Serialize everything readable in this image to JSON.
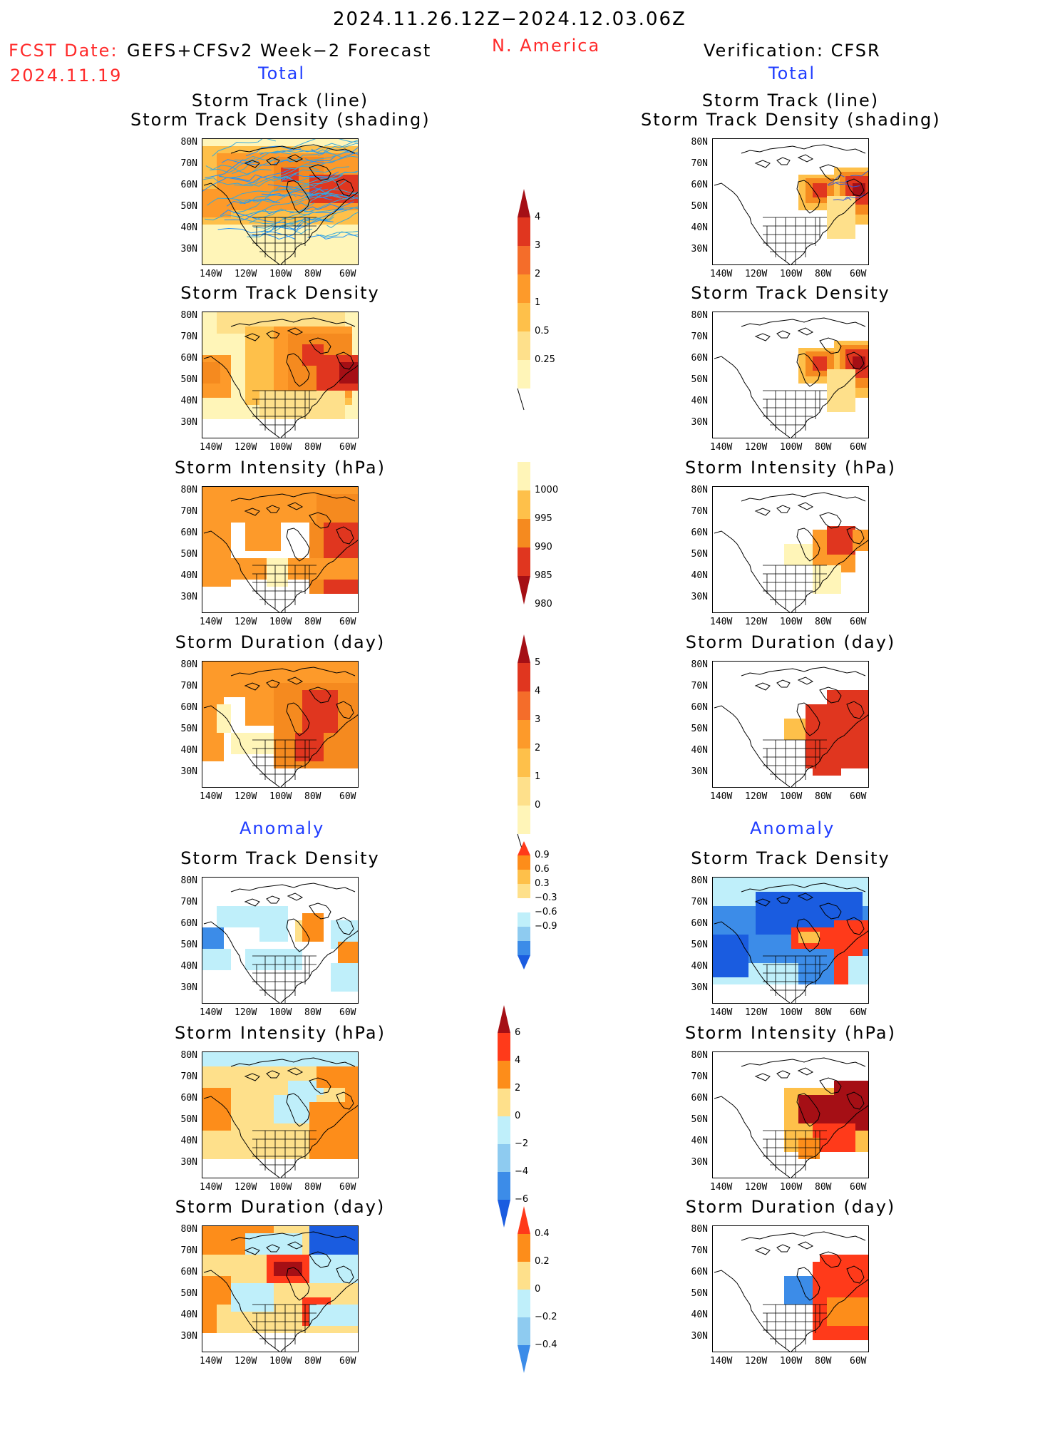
{
  "header": {
    "date_range": "2024.11.26.12Z−2024.12.03.06Z",
    "fcst_label": "FCST Date:",
    "fcst_model": "GEFS+CFSv2 Week−2 Forecast",
    "fcst_date": "2024.11.19",
    "region": "N. America",
    "verification": "Verification: CFSR"
  },
  "sections": {
    "total": "Total",
    "anomaly": "Anomaly"
  },
  "panel_titles": {
    "track_line": "Storm Track (line)",
    "track_density_shading": "Storm Track Density (shading)",
    "track_density": "Storm Track Density",
    "intensity": "Storm Intensity (hPa)",
    "duration": "Storm Duration (day)"
  },
  "lat_labels": [
    "80N",
    "70N",
    "60N",
    "50N",
    "40N",
    "30N"
  ],
  "lon_labels": [
    "140W",
    "120W",
    "100W",
    "80W",
    "60W"
  ],
  "colorbars": {
    "density_total": {
      "labels": [
        "4",
        "3",
        "2",
        "1",
        "0.5",
        "0.25"
      ],
      "colors": [
        "#a50f15",
        "#e0361f",
        "#f46d2a",
        "#fd9a2a",
        "#fec04a",
        "#fee08b",
        "#fff5b8"
      ]
    },
    "intensity_total": {
      "labels": [
        "1000",
        "995",
        "990",
        "985",
        "980"
      ],
      "colors": [
        "#fff5b8",
        "#fec04a",
        "#f58a1f",
        "#e0361f",
        "#a50f15"
      ]
    },
    "duration_total": {
      "labels": [
        "5",
        "4",
        "3",
        "2",
        "1",
        "0"
      ],
      "colors": [
        "#a50f15",
        "#e0361f",
        "#f46d2a",
        "#fd9a2a",
        "#fec04a",
        "#fee08b",
        "#fff5b8"
      ]
    },
    "density_anom": {
      "labels": [
        "0.9",
        "0.6",
        "0.3",
        "−0.3",
        "−0.6",
        "−0.9"
      ],
      "colors": [
        "#ff3a1a",
        "#fd8d1a",
        "#fec04a",
        "#fee08b",
        "#ffffff",
        "#bfeffa",
        "#8ecbf0",
        "#3c8ce8",
        "#1a5ce0"
      ]
    },
    "intensity_anom": {
      "labels": [
        "6",
        "4",
        "2",
        "0",
        "−2",
        "−4",
        "−6"
      ],
      "colors": [
        "#a50f15",
        "#ff3a1a",
        "#fd8d1a",
        "#fee08b",
        "#bfeffa",
        "#8ecbf0",
        "#3c8ce8",
        "#1a5ce0"
      ]
    },
    "duration_anom": {
      "labels": [
        "0.4",
        "0.2",
        "0",
        "−0.2",
        "−0.4"
      ],
      "colors": [
        "#ff3a1a",
        "#fd8d1a",
        "#fee08b",
        "#bfeffa",
        "#8ecbf0",
        "#3c8ce8"
      ]
    }
  }
}
